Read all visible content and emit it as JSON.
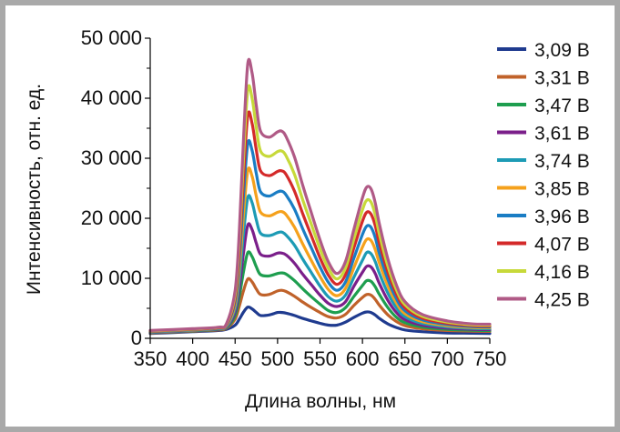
{
  "chart_data": {
    "type": "line",
    "xlabel": "Длина волны, нм",
    "ylabel": "Интенсивность, отн. ед.",
    "xlim": [
      350,
      750
    ],
    "ylim": [
      0,
      50000
    ],
    "xticks": [
      350,
      400,
      450,
      500,
      550,
      600,
      650,
      700,
      750
    ],
    "xtick_labels": [
      "350",
      "400",
      "450",
      "500",
      "550",
      "600",
      "650",
      "700",
      "750"
    ],
    "yticks": [
      0,
      10000,
      20000,
      30000,
      40000,
      50000
    ],
    "ytick_labels": [
      "0",
      "10 000",
      "20 000",
      "30 000",
      "40 000",
      "50 000"
    ],
    "grid": false,
    "legend_position": "right",
    "x": [
      350,
      400,
      430,
      440,
      450,
      455,
      460,
      465,
      470,
      475,
      480,
      490,
      500,
      505,
      510,
      520,
      530,
      540,
      550,
      560,
      570,
      580,
      590,
      600,
      605,
      610,
      615,
      620,
      630,
      640,
      650,
      670,
      700,
      730,
      750
    ],
    "series": [
      {
        "name": "3,09 В",
        "color": "#1f3b8f",
        "values": [
          800,
          1100,
          1300,
          1500,
          2200,
          3200,
          4400,
          5200,
          4900,
          4300,
          3800,
          3900,
          4300,
          4300,
          4200,
          3800,
          3300,
          2900,
          2500,
          2200,
          2200,
          2700,
          3500,
          4200,
          4400,
          4300,
          3900,
          3300,
          2400,
          1800,
          1400,
          1100,
          900,
          850,
          800
        ]
      },
      {
        "name": "3,31 В",
        "color": "#c0622a",
        "values": [
          900,
          1200,
          1400,
          1700,
          3200,
          5400,
          8000,
          9900,
          9400,
          8200,
          7300,
          7300,
          7900,
          8000,
          7800,
          7000,
          6000,
          5100,
          4300,
          3600,
          3400,
          4000,
          5500,
          6800,
          7300,
          7200,
          6500,
          5500,
          3900,
          2800,
          2100,
          1600,
          1300,
          1200,
          1150
        ]
      },
      {
        "name": "3,47 В",
        "color": "#1e9e4f",
        "values": [
          950,
          1250,
          1500,
          1800,
          3800,
          7000,
          11200,
          14300,
          13600,
          11900,
          10600,
          10400,
          10800,
          10900,
          10700,
          9600,
          8200,
          6900,
          5700,
          4600,
          4300,
          5100,
          7000,
          8800,
          9600,
          9500,
          8600,
          7300,
          5100,
          3500,
          2600,
          1900,
          1500,
          1350,
          1300
        ]
      },
      {
        "name": "3,61 В",
        "color": "#7b1f8a",
        "values": [
          1000,
          1300,
          1550,
          1900,
          4400,
          8500,
          14400,
          18900,
          18100,
          15800,
          14000,
          13700,
          14200,
          14200,
          13900,
          12500,
          10600,
          8900,
          7200,
          5800,
          5300,
          6100,
          8700,
          11000,
          12000,
          11900,
          10800,
          9100,
          6300,
          4300,
          3100,
          2200,
          1700,
          1500,
          1450
        ]
      },
      {
        "name": "3,74 В",
        "color": "#1d9bb5",
        "values": [
          1050,
          1350,
          1600,
          2000,
          5000,
          10000,
          17600,
          23500,
          22600,
          19700,
          17500,
          17100,
          17600,
          17700,
          17200,
          15500,
          13100,
          10900,
          8700,
          6900,
          6200,
          7200,
          10200,
          13000,
          14300,
          14100,
          12800,
          10800,
          7500,
          5100,
          3600,
          2500,
          1900,
          1650,
          1600
        ]
      },
      {
        "name": "3,85 В",
        "color": "#f5a11c",
        "values": [
          1100,
          1400,
          1650,
          2100,
          5600,
          11600,
          20800,
          28000,
          27000,
          23600,
          21000,
          20400,
          21000,
          21100,
          20600,
          18500,
          15600,
          12900,
          10300,
          8100,
          7100,
          8300,
          11800,
          15200,
          16500,
          16300,
          14800,
          12500,
          8700,
          5900,
          4100,
          2800,
          2100,
          1800,
          1750
        ]
      },
      {
        "name": "3,96 В",
        "color": "#1a7dc4",
        "values": [
          1150,
          1450,
          1700,
          2200,
          6200,
          13200,
          24000,
          32500,
          31300,
          27400,
          24400,
          23700,
          24400,
          24500,
          23900,
          21500,
          18100,
          15000,
          11900,
          9300,
          8000,
          9400,
          13400,
          17300,
          18700,
          18500,
          16800,
          14100,
          9800,
          6600,
          4600,
          3100,
          2300,
          1950,
          1900
        ]
      },
      {
        "name": "4,07 В",
        "color": "#d42a2a",
        "values": [
          1200,
          1500,
          1750,
          2300,
          6800,
          14800,
          27200,
          37200,
          35800,
          31300,
          27900,
          27100,
          27800,
          27900,
          27300,
          24500,
          20600,
          17000,
          13400,
          10500,
          9000,
          10600,
          15100,
          19500,
          21000,
          20700,
          18800,
          15800,
          11000,
          7400,
          5100,
          3400,
          2500,
          2100,
          2050
        ]
      },
      {
        "name": "4,16 В",
        "color": "#c7d93a",
        "values": [
          1250,
          1550,
          1800,
          2400,
          7400,
          16400,
          30400,
          41500,
          40000,
          35000,
          31200,
          30300,
          31100,
          31200,
          30400,
          27300,
          22900,
          18900,
          14900,
          11600,
          9900,
          11700,
          16600,
          21400,
          23000,
          22700,
          20600,
          17300,
          12000,
          8100,
          5600,
          3700,
          2700,
          2250,
          2200
        ]
      },
      {
        "name": "4,25 В",
        "color": "#b05a86",
        "values": [
          1300,
          1600,
          1850,
          2500,
          8000,
          18000,
          33600,
          45800,
          44200,
          38700,
          34500,
          33500,
          34400,
          34500,
          33600,
          30200,
          25300,
          20800,
          16400,
          12700,
          10800,
          12800,
          18200,
          23400,
          25200,
          24900,
          22600,
          19000,
          13200,
          8900,
          6100,
          4000,
          2900,
          2400,
          2350
        ]
      }
    ]
  }
}
